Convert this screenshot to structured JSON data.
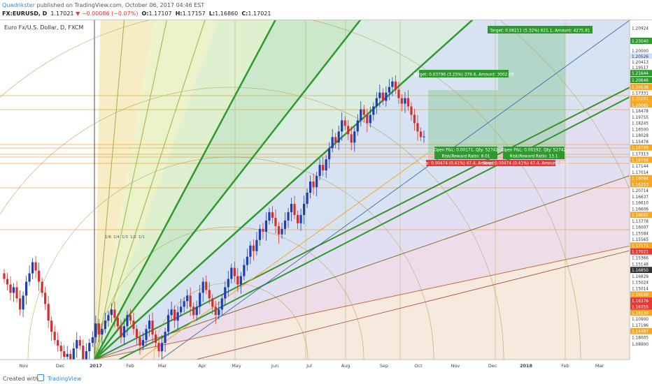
{
  "header": {
    "author": "Quadrikster",
    "published": " published on TradingView.com, October 06, 2017 04:46 EST",
    "symbol": "FX:EURUSD, D",
    "last": "1.17021",
    "change": "−0.00086 (−0.07%)",
    "o_label": "O:",
    "o": "1.17107",
    "h_label": "H:",
    "h": "1.17157",
    "l_label": "L:",
    "l": "1.16860",
    "c_label": "C:",
    "c": "1.17021"
  },
  "footer": {
    "created": "Created with",
    "brand": "TradingView"
  },
  "chart_data": {
    "type": "candlestick",
    "title": "Euro Fx/U.S. Dollar, D, FXCM",
    "x_ticks": [
      "Nov",
      "Dec",
      "2017",
      "Feb",
      "Mar",
      "Apr",
      "May",
      "Jun",
      "Jul",
      "Aug",
      "Sep",
      "Oct",
      "Nov",
      "Dec",
      "2018",
      "Feb",
      "Mar"
    ],
    "y_range": [
      1.09,
      1.212
    ],
    "price_labels": [
      {
        "v": 1.20924,
        "t": "1.20924",
        "bg": "#ffffff",
        "fg": "#333"
      },
      {
        "v": 1.2046,
        "t": "1.23040",
        "bg": "#2e9a2e",
        "fg": "#fff"
      },
      {
        "v": 1.201,
        "t": "1.20000",
        "bg": "#ffffff",
        "fg": "#333"
      },
      {
        "v": 1.199,
        "t": "1.20526",
        "bg": "#cfe0ff",
        "fg": "#333"
      },
      {
        "v": 1.197,
        "t": "1.20413",
        "bg": "#ffffff",
        "fg": "#333"
      },
      {
        "v": 1.195,
        "t": "1.19517",
        "bg": "#ffffff",
        "fg": "#333"
      },
      {
        "v": 1.193,
        "t": "1.21644",
        "bg": "#2e9a2e",
        "fg": "#fff"
      },
      {
        "v": 1.1905,
        "t": "1.20646",
        "bg": "#2e9a2e",
        "fg": "#fff"
      },
      {
        "v": 1.188,
        "t": "1.20538",
        "bg": "#f5a623",
        "fg": "#fff"
      },
      {
        "v": 1.1858,
        "t": "1.17331",
        "bg": "#ffffff",
        "fg": "#333"
      },
      {
        "v": 1.1838,
        "t": "1.20201",
        "bg": "#f5a623",
        "fg": "#fff"
      },
      {
        "v": 1.1815,
        "t": "1.20085",
        "bg": "#f5a623",
        "fg": "#fff"
      },
      {
        "v": 1.1795,
        "t": "1.18478",
        "bg": "#ffffff",
        "fg": "#333"
      },
      {
        "v": 1.1772,
        "t": "1.19755",
        "bg": "#ffffff",
        "fg": "#333"
      },
      {
        "v": 1.175,
        "t": "1.18245",
        "bg": "#ffffff",
        "fg": "#333"
      },
      {
        "v": 1.1728,
        "t": "1.16500",
        "bg": "#ffffff",
        "fg": "#333"
      },
      {
        "v": 1.1706,
        "t": "1.18028",
        "bg": "#ffffff",
        "fg": "#333"
      },
      {
        "v": 1.1684,
        "t": "1.15478",
        "bg": "#ffffff",
        "fg": "#333"
      },
      {
        "v": 1.1662,
        "t": "1.18799",
        "bg": "#f5a623",
        "fg": "#fff"
      },
      {
        "v": 1.164,
        "t": "1.17313",
        "bg": "#ffffff",
        "fg": "#333"
      },
      {
        "v": 1.1618,
        "t": "1.18758",
        "bg": "#f5a623",
        "fg": "#fff"
      },
      {
        "v": 1.1596,
        "t": "1.17144",
        "bg": "#ffffff",
        "fg": "#333"
      },
      {
        "v": 1.1574,
        "t": "1.17014",
        "bg": "#ffffff",
        "fg": "#333"
      },
      {
        "v": 1.1552,
        "t": "1.16084",
        "bg": "#f5a623",
        "fg": "#fff"
      },
      {
        "v": 1.153,
        "t": "1.16253",
        "bg": "#f5a623",
        "fg": "#fff"
      },
      {
        "v": 1.1508,
        "t": "1.20714",
        "bg": "#ffffff",
        "fg": "#333"
      },
      {
        "v": 1.1486,
        "t": "1.16637",
        "bg": "#ffffff",
        "fg": "#333"
      },
      {
        "v": 1.1464,
        "t": "1.16610",
        "bg": "#ffffff",
        "fg": "#333"
      },
      {
        "v": 1.1442,
        "t": "1.16606",
        "bg": "#ffffff",
        "fg": "#333"
      },
      {
        "v": 1.142,
        "t": "1.18005",
        "bg": "#f5a623",
        "fg": "#fff"
      },
      {
        "v": 1.1398,
        "t": "1.13778",
        "bg": "#ffffff",
        "fg": "#333"
      },
      {
        "v": 1.1376,
        "t": "1.16007",
        "bg": "#ffffff",
        "fg": "#333"
      },
      {
        "v": 1.1354,
        "t": "1.15584",
        "bg": "#ffffff",
        "fg": "#333"
      },
      {
        "v": 1.1332,
        "t": "1.15565",
        "bg": "#ffffff",
        "fg": "#333"
      },
      {
        "v": 1.131,
        "t": "1.17171",
        "bg": "#f5a623",
        "fg": "#fff"
      },
      {
        "v": 1.1288,
        "t": "1.17021",
        "bg": "#e53935",
        "fg": "#fff"
      },
      {
        "v": 1.1266,
        "t": "1.15366",
        "bg": "#ffffff",
        "fg": "#333"
      },
      {
        "v": 1.1244,
        "t": "1.15148",
        "bg": "#ffffff",
        "fg": "#333"
      },
      {
        "v": 1.1222,
        "t": "1.16850",
        "bg": "#333333",
        "fg": "#fff"
      },
      {
        "v": 1.12,
        "t": "1.16829",
        "bg": "#ffffff",
        "fg": "#333"
      },
      {
        "v": 1.1178,
        "t": "1.15024",
        "bg": "#ffffff",
        "fg": "#333"
      },
      {
        "v": 1.1156,
        "t": "1.15014",
        "bg": "#ffffff",
        "fg": "#333"
      },
      {
        "v": 1.1134,
        "t": "1.16500",
        "bg": "#f5a623",
        "fg": "#fff"
      },
      {
        "v": 1.1112,
        "t": "1.16376",
        "bg": "#e53935",
        "fg": "#fff"
      },
      {
        "v": 1.109,
        "t": "1.16355",
        "bg": "#e53935",
        "fg": "#fff"
      },
      {
        "v": 1.1068,
        "t": "1.16130",
        "bg": "#f5a623",
        "fg": "#fff"
      },
      {
        "v": 1.1046,
        "t": "1.10900",
        "bg": "#ffffff",
        "fg": "#333"
      },
      {
        "v": 1.1024,
        "t": "1.17196",
        "bg": "#ffffff",
        "fg": "#333"
      },
      {
        "v": 1.1002,
        "t": "1.14487",
        "bg": "#f5a623",
        "fg": "#fff"
      },
      {
        "v": 1.098,
        "t": "1.18005",
        "bg": "#ffffff",
        "fg": "#333"
      },
      {
        "v": 1.0956,
        "t": "1.08900",
        "bg": "#ffffff",
        "fg": "#333"
      }
    ],
    "closes": [
      1.119,
      1.117,
      1.114,
      1.116,
      1.112,
      1.108,
      1.113,
      1.118,
      1.121,
      1.125,
      1.122,
      1.118,
      1.114,
      1.11,
      1.104,
      1.1,
      1.097,
      1.095,
      1.093,
      1.091,
      1.092,
      1.089,
      1.094,
      1.097,
      1.095,
      1.09,
      1.093,
      1.096,
      1.098,
      1.103,
      1.099,
      1.101,
      1.104,
      1.106,
      1.108,
      1.105,
      1.102,
      1.098,
      1.102,
      1.106,
      1.104,
      1.101,
      1.098,
      1.095,
      1.097,
      1.101,
      1.104,
      1.099,
      1.096,
      1.093,
      1.096,
      1.1,
      1.106,
      1.108,
      1.104,
      1.107,
      1.109,
      1.111,
      1.113,
      1.109,
      1.106,
      1.109,
      1.114,
      1.118,
      1.115,
      1.112,
      1.109,
      1.106,
      1.108,
      1.112,
      1.116,
      1.119,
      1.123,
      1.12,
      1.117,
      1.12,
      1.124,
      1.127,
      1.131,
      1.129,
      1.133,
      1.137,
      1.136,
      1.14,
      1.143,
      1.141,
      1.138,
      1.135,
      1.137,
      1.14,
      1.143,
      1.146,
      1.142,
      1.139,
      1.142,
      1.146,
      1.15,
      1.154,
      1.152,
      1.156,
      1.16,
      1.158,
      1.162,
      1.166,
      1.17,
      1.168,
      1.172,
      1.176,
      1.174,
      1.171,
      1.168,
      1.172,
      1.176,
      1.18,
      1.178,
      1.175,
      1.178,
      1.181,
      1.184,
      1.186,
      1.183,
      1.186,
      1.188,
      1.19,
      1.187,
      1.184,
      1.182,
      1.184,
      1.181,
      1.178,
      1.175,
      1.172,
      1.17,
      1.1702
    ],
    "vlines": [
      135
    ],
    "order_labels": [
      {
        "text": "Target: 0.06211 (5.32%) 621.1, Amount: 4275.81",
        "bg": "#2e9a2e"
      },
      {
        "text": "Target: 0.03796 (3.25%) 379.6, Amount: 3002.09",
        "bg": "#2e9a2e"
      },
      {
        "text": "Open P&L: 0.00171, Qty: 52742",
        "bg": "#2e9a2e"
      },
      {
        "text": "Risk/Reward Ratio: 8.01",
        "bg": "#2e9a2e"
      },
      {
        "text": "Open P&L: 0.00192, Qty: 52742",
        "bg": "#2e9a2e"
      },
      {
        "text": "Risk/Reward Ratio: 13.1",
        "bg": "#2e9a2e"
      },
      {
        "text": "Stop: 0.00474 (0.41%) 47.4, Amount: 750",
        "bg": "#e53935"
      },
      {
        "text": "Stop: 0.00474 (0.41%) 47.4, Amount: 750",
        "bg": "#e53935"
      }
    ],
    "fan_labels": [
      "1/8",
      "1/4",
      "1/3",
      "1/2",
      "1/1"
    ]
  }
}
